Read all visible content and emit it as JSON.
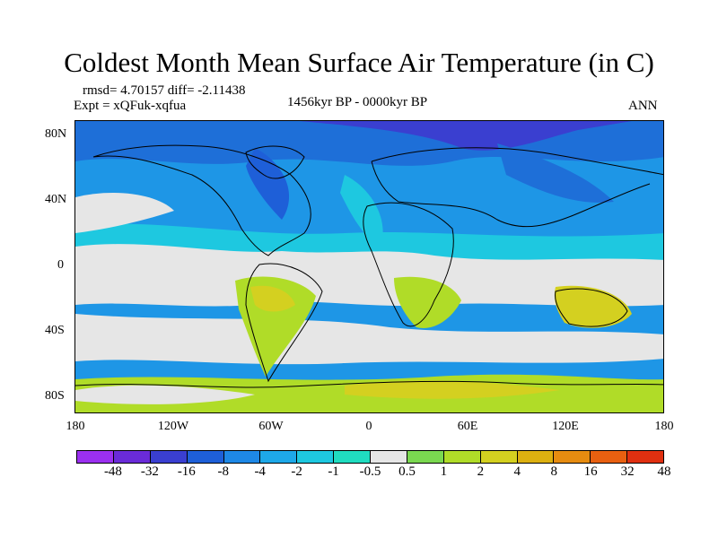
{
  "title": "Coldest Month Mean Surface Air Temperature (in C)",
  "stats": "rmsd= 4.70157 diff= -2.11438",
  "experiment": "Expt = xQFuk-xqfua",
  "period": "1456kyr BP - 0000kyr BP",
  "season": "ANN",
  "map": {
    "lat_ticks": [
      "80N",
      "40N",
      "0",
      "40S",
      "80S"
    ],
    "lon_ticks": [
      "180",
      "120W",
      "60W",
      "0",
      "60E",
      "120E",
      "180"
    ],
    "ocean_color": "#1e96e6",
    "land_outline_color": "#000000"
  },
  "colorbar": {
    "colors": [
      "#9b30f0",
      "#6a2bd8",
      "#3a3fd0",
      "#1e5fd8",
      "#1e88e6",
      "#1ea8e8",
      "#1ec8e0",
      "#20dcc0",
      "#e6e6e6",
      "#7ad850",
      "#b0dc28",
      "#d4d020",
      "#dcb010",
      "#e68c10",
      "#e86010",
      "#e03010"
    ],
    "labels": [
      "-48",
      "-32",
      "-16",
      "-8",
      "-4",
      "-2",
      "-1",
      "-0.5",
      "0.5",
      "1",
      "2",
      "4",
      "8",
      "16",
      "32",
      "48"
    ]
  }
}
